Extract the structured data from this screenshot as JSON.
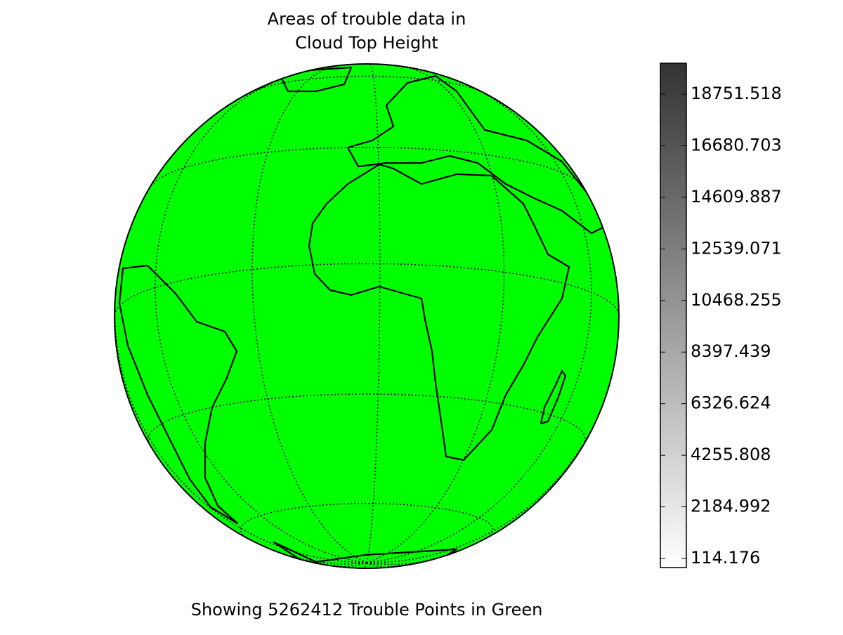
{
  "chart_data": {
    "type": "map",
    "title": [
      "Areas of trouble data in",
      "Cloud Top Height"
    ],
    "caption": "Showing 5262412 Trouble Points in Green",
    "fill_color": "#00ff00",
    "colorbar": {
      "clim": [
        -252,
        19992
      ],
      "colors": [
        "#ffffff",
        "#333333"
      ],
      "ticks": [
        114.176,
        2184.992,
        4255.808,
        6326.624,
        8397.439,
        10468.255,
        12539.071,
        14609.887,
        16680.703,
        18751.518
      ]
    }
  }
}
